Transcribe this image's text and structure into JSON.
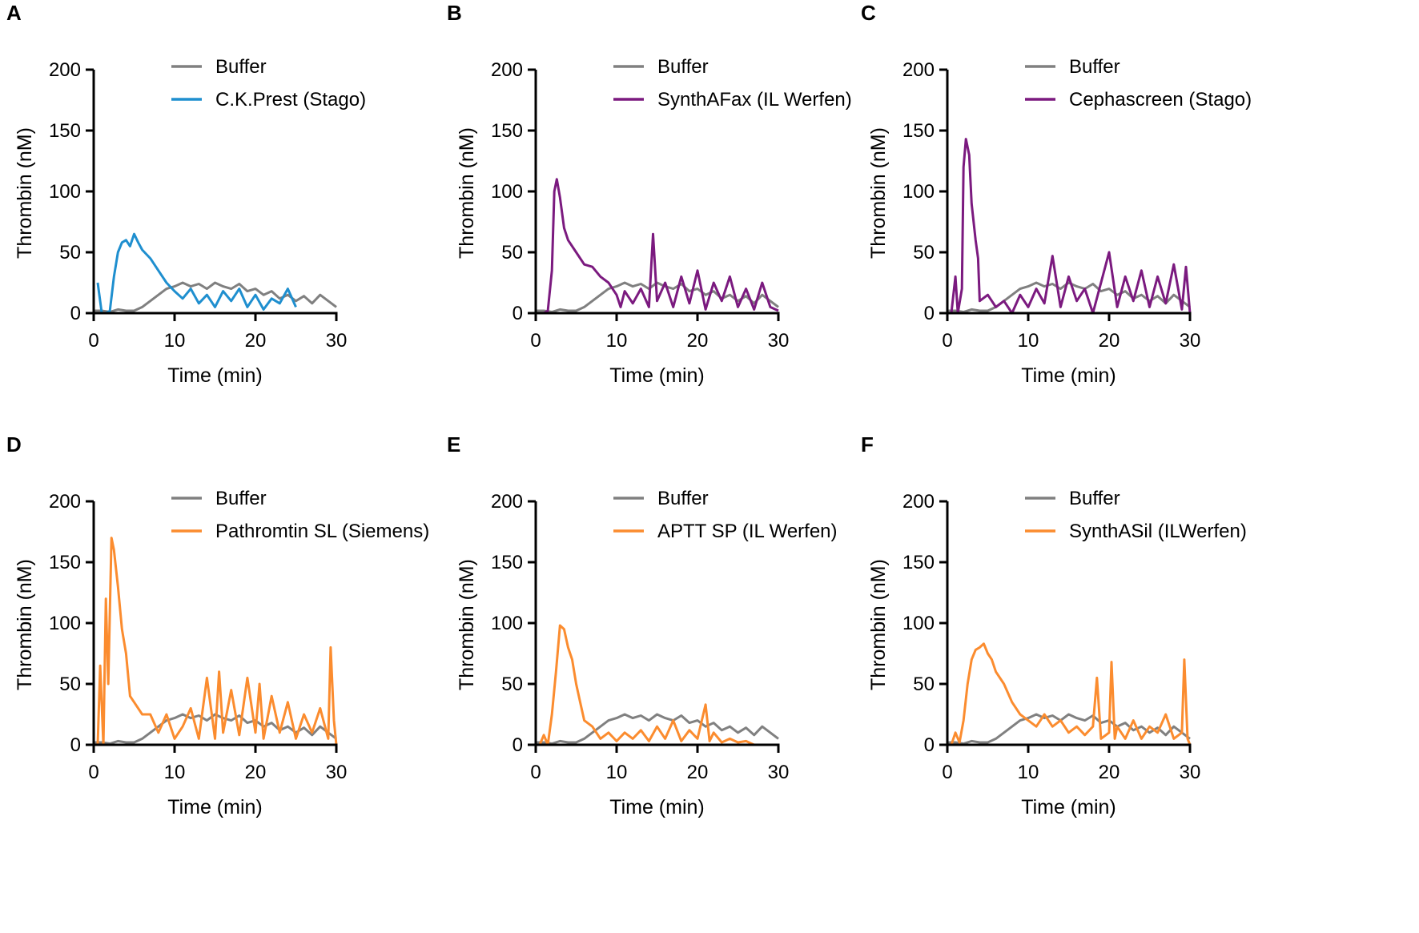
{
  "chart_data": [
    {
      "panel": "A",
      "type": "line",
      "xlabel": "Time (min)",
      "ylabel": "Thrombin (nM)",
      "xlim": [
        0,
        30
      ],
      "ylim": [
        0,
        200
      ],
      "xticks": [
        "0",
        "10",
        "20",
        "30"
      ],
      "yticks": [
        "0",
        "50",
        "100",
        "150",
        "200"
      ],
      "grid": false,
      "legend_position": "top-right",
      "series": [
        {
          "name": "Buffer",
          "color": "#808080",
          "x": [
            0,
            1,
            2,
            3,
            4,
            5,
            6,
            7,
            8,
            9,
            10,
            11,
            12,
            13,
            14,
            15,
            16,
            17,
            18,
            19,
            20,
            21,
            22,
            23,
            24,
            25,
            26,
            27,
            28,
            29,
            30
          ],
          "y": [
            2,
            2,
            1,
            3,
            2,
            2,
            5,
            10,
            15,
            20,
            22,
            25,
            22,
            24,
            20,
            25,
            22,
            20,
            24,
            18,
            20,
            15,
            18,
            12,
            15,
            10,
            14,
            8,
            15,
            10,
            5
          ]
        },
        {
          "name": "C.K.Prest (Stago)",
          "color": "#1f8fcf",
          "x": [
            0.5,
            1,
            1.5,
            2,
            2.5,
            3,
            3.5,
            4,
            4.5,
            5,
            5.5,
            6,
            7,
            8,
            9,
            10,
            11,
            12,
            13,
            14,
            15,
            16,
            17,
            18,
            19,
            20,
            21,
            22,
            23,
            24,
            25
          ],
          "y": [
            25,
            0,
            0,
            2,
            30,
            50,
            58,
            60,
            55,
            65,
            58,
            52,
            45,
            35,
            25,
            18,
            12,
            20,
            8,
            15,
            5,
            18,
            10,
            20,
            5,
            15,
            3,
            12,
            8,
            20,
            5
          ]
        }
      ]
    },
    {
      "panel": "B",
      "type": "line",
      "xlabel": "Time (min)",
      "ylabel": "Thrombin (nM)",
      "xlim": [
        0,
        30
      ],
      "ylim": [
        0,
        200
      ],
      "xticks": [
        "0",
        "10",
        "20",
        "30"
      ],
      "yticks": [
        "0",
        "50",
        "100",
        "150",
        "200"
      ],
      "grid": false,
      "legend_position": "top-right",
      "series": [
        {
          "name": "Buffer",
          "color": "#808080",
          "x": [
            0,
            1,
            2,
            3,
            4,
            5,
            6,
            7,
            8,
            9,
            10,
            11,
            12,
            13,
            14,
            15,
            16,
            17,
            18,
            19,
            20,
            21,
            22,
            23,
            24,
            25,
            26,
            27,
            28,
            29,
            30
          ],
          "y": [
            2,
            2,
            1,
            3,
            2,
            2,
            5,
            10,
            15,
            20,
            22,
            25,
            22,
            24,
            20,
            25,
            22,
            20,
            24,
            18,
            20,
            15,
            18,
            12,
            15,
            10,
            14,
            8,
            15,
            10,
            5
          ]
        },
        {
          "name": "SynthAFax (IL Werfen)",
          "color": "#7b1a7f",
          "x": [
            1,
            1.5,
            2,
            2.3,
            2.6,
            3,
            3.5,
            4,
            5,
            6,
            7,
            8,
            9,
            10,
            10.5,
            11,
            12,
            13,
            14,
            14.5,
            15,
            16,
            17,
            18,
            19,
            20,
            21,
            22,
            23,
            24,
            25,
            26,
            27,
            28,
            29,
            30
          ],
          "y": [
            0,
            2,
            35,
            100,
            110,
            95,
            70,
            60,
            50,
            40,
            38,
            30,
            25,
            15,
            5,
            18,
            8,
            20,
            5,
            65,
            10,
            25,
            5,
            30,
            8,
            35,
            3,
            25,
            10,
            30,
            5,
            20,
            3,
            25,
            5,
            2
          ]
        }
      ]
    },
    {
      "panel": "C",
      "type": "line",
      "xlabel": "Time (min)",
      "ylabel": "Thrombin (nM)",
      "xlim": [
        0,
        30
      ],
      "ylim": [
        0,
        200
      ],
      "xticks": [
        "0",
        "10",
        "20",
        "30"
      ],
      "yticks": [
        "0",
        "50",
        "100",
        "150",
        "200"
      ],
      "grid": false,
      "legend_position": "top-right",
      "series": [
        {
          "name": "Buffer",
          "color": "#808080",
          "x": [
            0,
            1,
            2,
            3,
            4,
            5,
            6,
            7,
            8,
            9,
            10,
            11,
            12,
            13,
            14,
            15,
            16,
            17,
            18,
            19,
            20,
            21,
            22,
            23,
            24,
            25,
            26,
            27,
            28,
            29,
            30
          ],
          "y": [
            2,
            2,
            1,
            3,
            2,
            2,
            5,
            10,
            15,
            20,
            22,
            25,
            22,
            24,
            20,
            25,
            22,
            20,
            24,
            18,
            20,
            15,
            18,
            12,
            15,
            10,
            14,
            8,
            15,
            10,
            5
          ]
        },
        {
          "name": "Cephascreen (Stago)",
          "color": "#7b1a7f",
          "x": [
            0.5,
            1,
            1.3,
            1.8,
            2,
            2.3,
            2.7,
            3,
            3.5,
            3.8,
            4,
            5,
            6,
            7,
            8,
            9,
            10,
            11,
            12,
            13,
            14,
            15,
            16,
            17,
            18,
            19,
            20,
            21,
            22,
            23,
            24,
            25,
            26,
            27,
            28,
            29,
            29.5,
            30
          ],
          "y": [
            0,
            30,
            0,
            20,
            120,
            143,
            130,
            90,
            60,
            45,
            10,
            15,
            5,
            10,
            0,
            15,
            5,
            20,
            8,
            47,
            5,
            30,
            10,
            20,
            0,
            25,
            50,
            5,
            30,
            10,
            35,
            5,
            30,
            8,
            40,
            3,
            38,
            0
          ]
        }
      ]
    },
    {
      "panel": "D",
      "type": "line",
      "xlabel": "Time (min)",
      "ylabel": "Thrombin (nM)",
      "xlim": [
        0,
        30
      ],
      "ylim": [
        0,
        200
      ],
      "xticks": [
        "0",
        "10",
        "20",
        "30"
      ],
      "yticks": [
        "0",
        "50",
        "100",
        "150",
        "200"
      ],
      "grid": false,
      "legend_position": "top-right",
      "series": [
        {
          "name": "Buffer",
          "color": "#808080",
          "x": [
            0,
            1,
            2,
            3,
            4,
            5,
            6,
            7,
            8,
            9,
            10,
            11,
            12,
            13,
            14,
            15,
            16,
            17,
            18,
            19,
            20,
            21,
            22,
            23,
            24,
            25,
            26,
            27,
            28,
            29,
            30
          ],
          "y": [
            2,
            2,
            1,
            3,
            2,
            2,
            5,
            10,
            15,
            20,
            22,
            25,
            22,
            24,
            20,
            25,
            22,
            20,
            24,
            18,
            20,
            15,
            18,
            12,
            15,
            10,
            14,
            8,
            15,
            10,
            5
          ]
        },
        {
          "name": "Pathromtin SL (Siemens)",
          "color": "#fb8c2f",
          "x": [
            0.5,
            0.8,
            1.2,
            1.5,
            1.8,
            2.2,
            2.5,
            3,
            3.5,
            4,
            4.5,
            5,
            6,
            7,
            8,
            9,
            10,
            11,
            12,
            13,
            14,
            15,
            15.5,
            16,
            17,
            18,
            19,
            20,
            20.5,
            21,
            22,
            23,
            24,
            25,
            26,
            27,
            28,
            29,
            29.3,
            29.7,
            30
          ],
          "y": [
            0,
            65,
            0,
            120,
            50,
            170,
            160,
            130,
            95,
            75,
            40,
            35,
            25,
            25,
            10,
            25,
            5,
            15,
            30,
            5,
            55,
            5,
            60,
            10,
            45,
            8,
            55,
            10,
            50,
            5,
            40,
            10,
            35,
            5,
            25,
            10,
            30,
            5,
            80,
            20,
            0
          ]
        }
      ]
    },
    {
      "panel": "E",
      "type": "line",
      "xlabel": "Time (min)",
      "ylabel": "Thrombin (nM)",
      "xlim": [
        0,
        30
      ],
      "ylim": [
        0,
        200
      ],
      "xticks": [
        "0",
        "10",
        "20",
        "30"
      ],
      "yticks": [
        "0",
        "50",
        "100",
        "150",
        "200"
      ],
      "grid": false,
      "legend_position": "top-right",
      "series": [
        {
          "name": "Buffer",
          "color": "#808080",
          "x": [
            0,
            1,
            2,
            3,
            4,
            5,
            6,
            7,
            8,
            9,
            10,
            11,
            12,
            13,
            14,
            15,
            16,
            17,
            18,
            19,
            20,
            21,
            22,
            23,
            24,
            25,
            26,
            27,
            28,
            29,
            30
          ],
          "y": [
            2,
            2,
            1,
            3,
            2,
            2,
            5,
            10,
            15,
            20,
            22,
            25,
            22,
            24,
            20,
            25,
            22,
            20,
            24,
            18,
            20,
            15,
            18,
            12,
            15,
            10,
            14,
            8,
            15,
            10,
            5
          ]
        },
        {
          "name": "APTT SP (IL Werfen)",
          "color": "#fb8c2f",
          "x": [
            0.5,
            1,
            1.5,
            2,
            2.5,
            3,
            3.5,
            4,
            4.5,
            5,
            5.5,
            6,
            7,
            8,
            9,
            10,
            11,
            12,
            13,
            14,
            15,
            16,
            17,
            18,
            19,
            20,
            21,
            21.5,
            22,
            23,
            24,
            25,
            26,
            27,
            30
          ],
          "y": [
            0,
            8,
            0,
            25,
            60,
            98,
            95,
            80,
            70,
            50,
            35,
            20,
            15,
            5,
            10,
            3,
            10,
            5,
            12,
            3,
            15,
            5,
            20,
            3,
            12,
            5,
            33,
            3,
            10,
            2,
            5,
            2,
            3,
            0,
            0
          ]
        }
      ]
    },
    {
      "panel": "F",
      "type": "line",
      "xlabel": "Time (min)",
      "ylabel": "Thrombin (nM)",
      "xlim": [
        0,
        30
      ],
      "ylim": [
        0,
        200
      ],
      "xticks": [
        "0",
        "10",
        "20",
        "30"
      ],
      "yticks": [
        "0",
        "50",
        "100",
        "150",
        "200"
      ],
      "grid": false,
      "legend_position": "top-right",
      "series": [
        {
          "name": "Buffer",
          "color": "#808080",
          "x": [
            0,
            1,
            2,
            3,
            4,
            5,
            6,
            7,
            8,
            9,
            10,
            11,
            12,
            13,
            14,
            15,
            16,
            17,
            18,
            19,
            20,
            21,
            22,
            23,
            24,
            25,
            26,
            27,
            28,
            29,
            30
          ],
          "y": [
            2,
            2,
            1,
            3,
            2,
            2,
            5,
            10,
            15,
            20,
            22,
            25,
            22,
            24,
            20,
            25,
            22,
            20,
            24,
            18,
            20,
            15,
            18,
            12,
            15,
            10,
            14,
            8,
            15,
            10,
            5
          ]
        },
        {
          "name": "SynthASil (ILWerfen)",
          "color": "#fb8c2f",
          "x": [
            0.5,
            1,
            1.5,
            2,
            2.5,
            3,
            3.5,
            4,
            4.5,
            5,
            5.5,
            6,
            7,
            8,
            9,
            10,
            11,
            12,
            13,
            14,
            15,
            16,
            17,
            18,
            18.5,
            19,
            20,
            20.3,
            20.7,
            21,
            22,
            23,
            24,
            25,
            26,
            27,
            28,
            29,
            29.3,
            29.7,
            30
          ],
          "y": [
            0,
            10,
            2,
            20,
            50,
            70,
            78,
            80,
            83,
            75,
            70,
            60,
            50,
            35,
            25,
            20,
            15,
            25,
            15,
            20,
            10,
            15,
            8,
            15,
            55,
            5,
            10,
            68,
            5,
            15,
            5,
            20,
            5,
            15,
            10,
            25,
            5,
            10,
            70,
            5,
            0
          ]
        }
      ]
    }
  ]
}
